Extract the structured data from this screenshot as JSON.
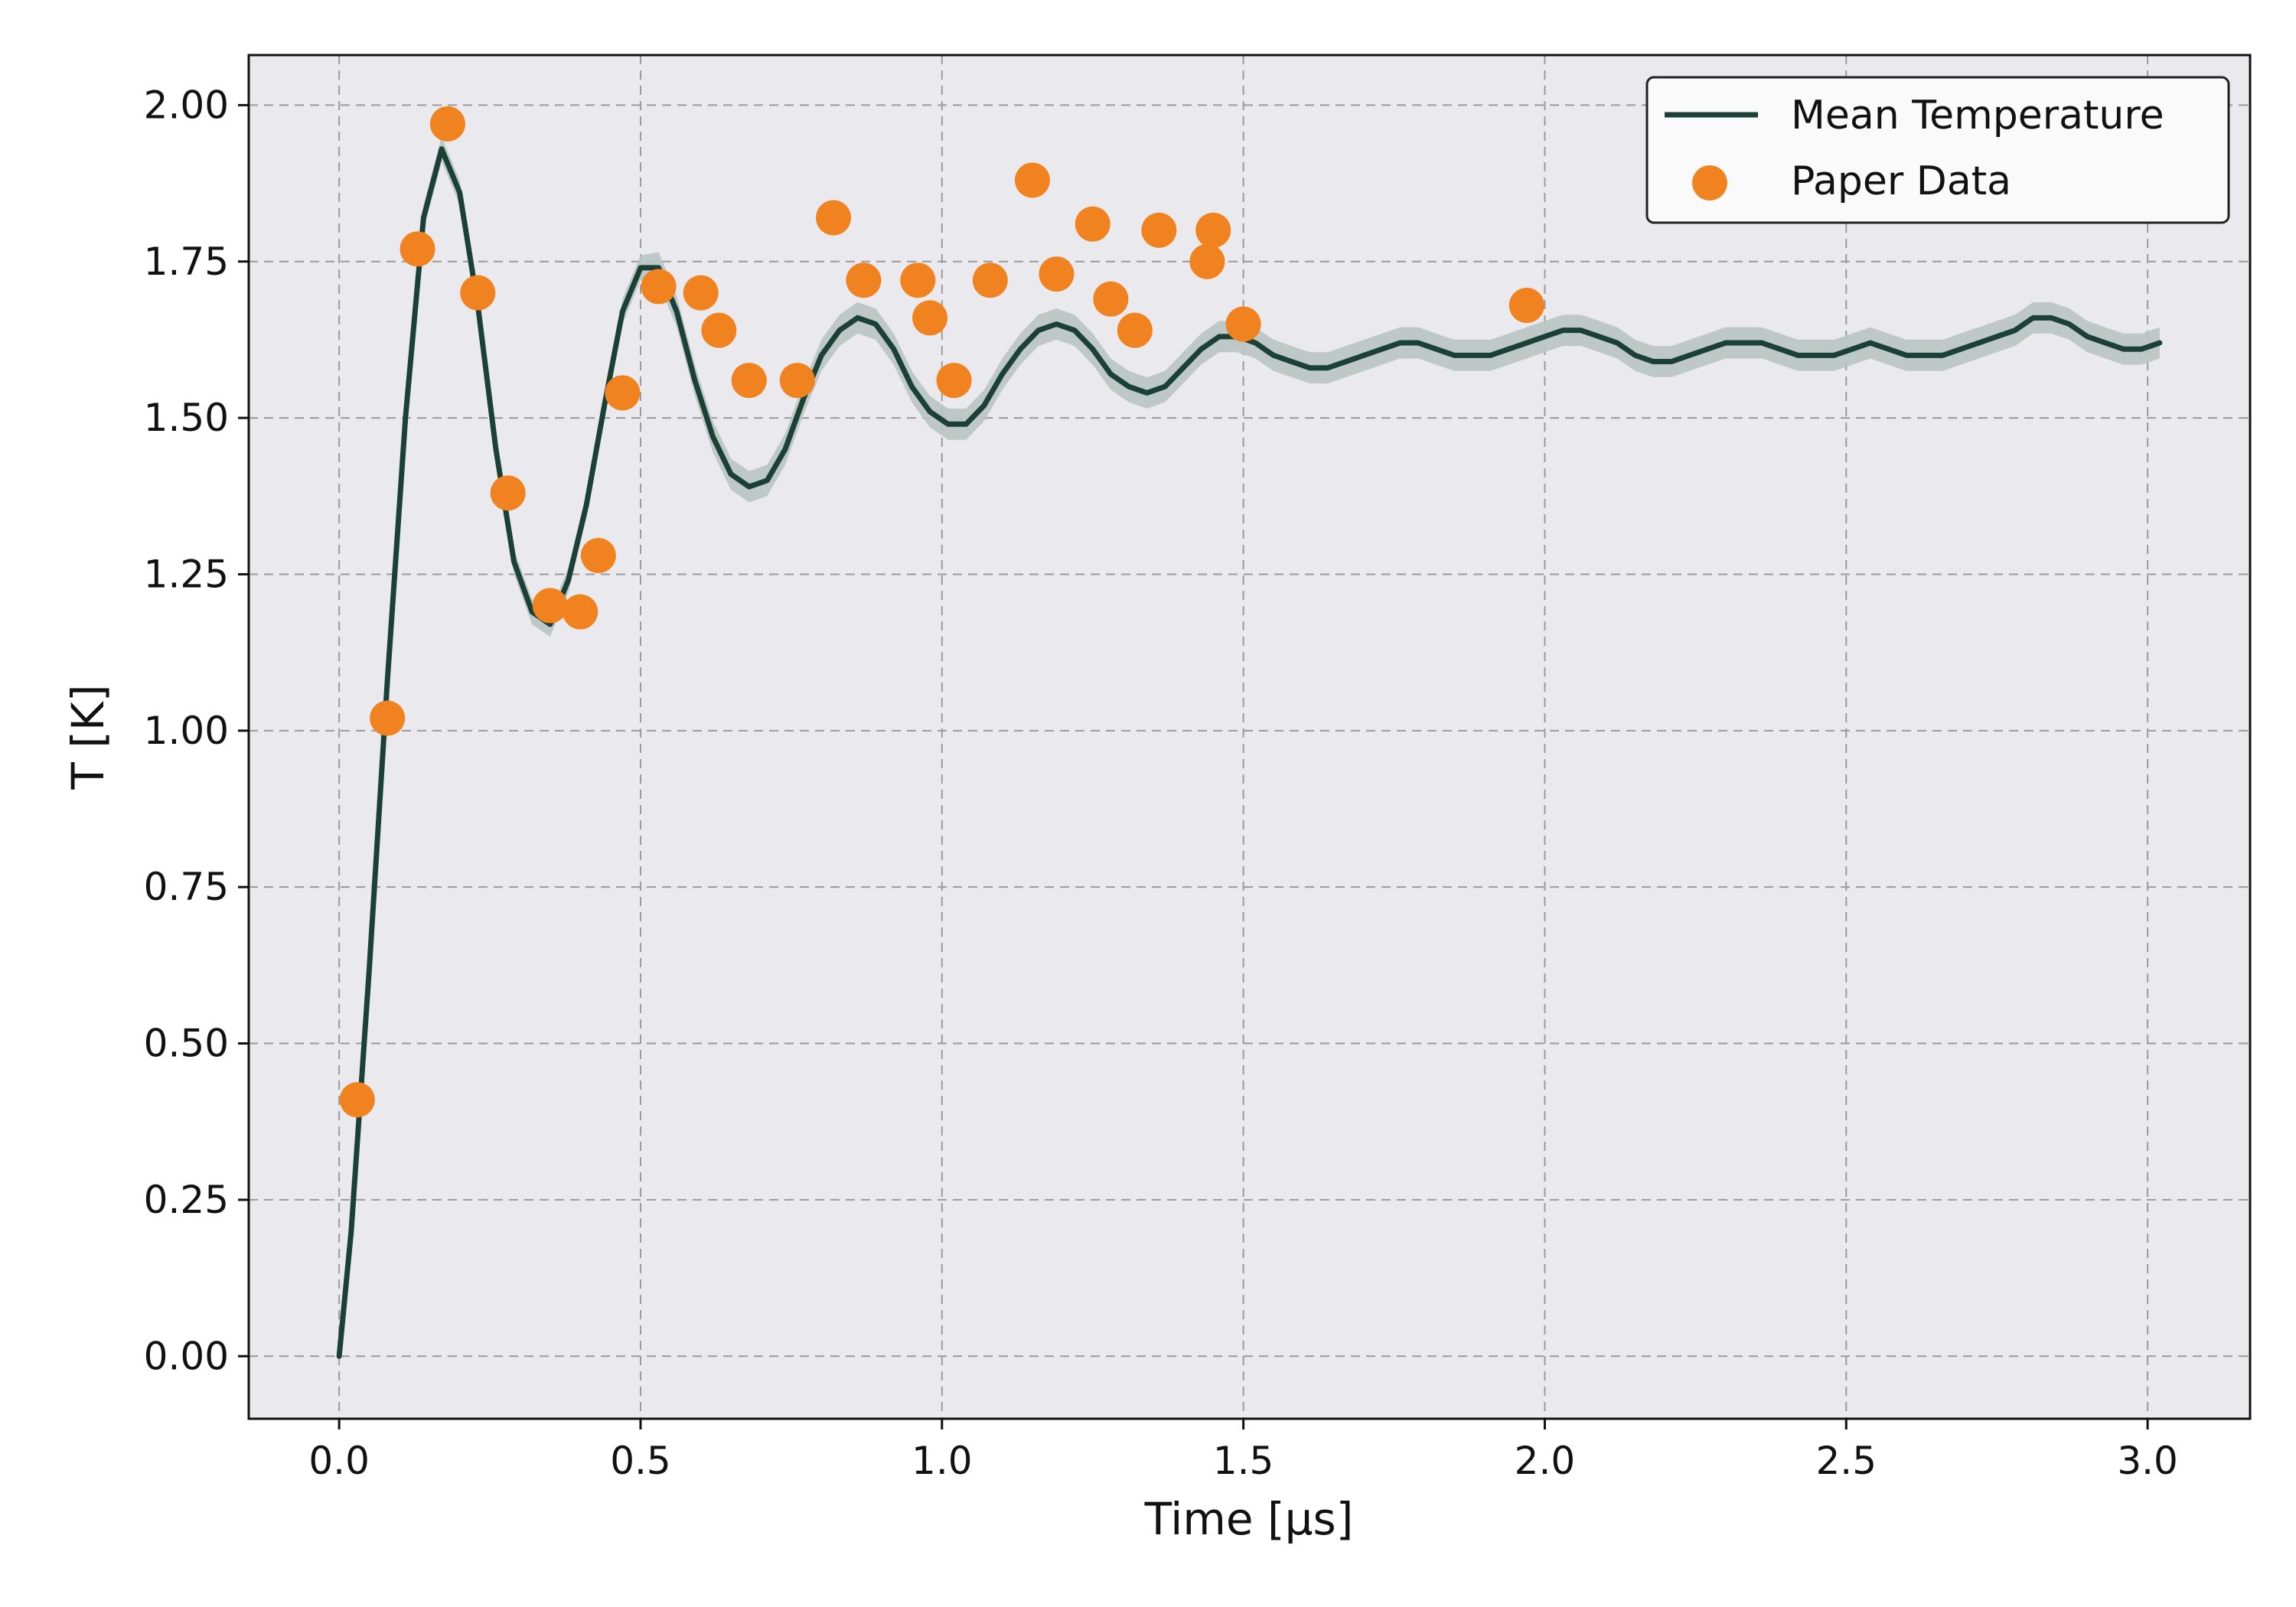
{
  "chart_data": {
    "type": "line",
    "xlabel": "Time [μs]",
    "ylabel": "T [K]",
    "xlim": [
      -0.15,
      3.17
    ],
    "ylim": [
      -0.1,
      2.08
    ],
    "x_ticks": [
      0.0,
      0.5,
      1.0,
      1.5,
      2.0,
      2.5,
      3.0
    ],
    "x_tick_labels": [
      "0.0",
      "0.5",
      "1.0",
      "1.5",
      "2.0",
      "2.5",
      "3.0"
    ],
    "y_ticks": [
      0.0,
      0.25,
      0.5,
      0.75,
      1.0,
      1.25,
      1.5,
      1.75,
      2.0
    ],
    "y_tick_labels": [
      "0.00",
      "0.25",
      "0.50",
      "0.75",
      "1.00",
      "1.25",
      "1.50",
      "1.75",
      "2.00"
    ],
    "grid": true,
    "legend_position": "top-right",
    "background_color": "#eae9ee",
    "series": [
      {
        "name": "Mean Temperature",
        "kind": "line",
        "color": "#1b4137",
        "band_color": "#b9c4c2",
        "x": [
          0.0,
          0.02,
          0.05,
          0.08,
          0.11,
          0.14,
          0.17,
          0.2,
          0.23,
          0.26,
          0.29,
          0.32,
          0.35,
          0.38,
          0.41,
          0.44,
          0.47,
          0.5,
          0.53,
          0.56,
          0.59,
          0.62,
          0.65,
          0.68,
          0.71,
          0.74,
          0.77,
          0.8,
          0.83,
          0.86,
          0.89,
          0.92,
          0.95,
          0.98,
          1.01,
          1.04,
          1.07,
          1.1,
          1.13,
          1.16,
          1.19,
          1.22,
          1.25,
          1.28,
          1.31,
          1.34,
          1.37,
          1.4,
          1.43,
          1.46,
          1.49,
          1.52,
          1.55,
          1.58,
          1.61,
          1.64,
          1.67,
          1.7,
          1.73,
          1.76,
          1.79,
          1.82,
          1.85,
          1.88,
          1.91,
          1.94,
          1.97,
          2.0,
          2.03,
          2.06,
          2.09,
          2.12,
          2.15,
          2.18,
          2.21,
          2.24,
          2.27,
          2.3,
          2.33,
          2.36,
          2.39,
          2.42,
          2.45,
          2.48,
          2.51,
          2.54,
          2.57,
          2.6,
          2.63,
          2.66,
          2.69,
          2.72,
          2.75,
          2.78,
          2.81,
          2.84,
          2.87,
          2.9,
          2.93,
          2.96,
          2.99,
          3.02
        ],
        "y": [
          0.0,
          0.2,
          0.62,
          1.08,
          1.5,
          1.82,
          1.93,
          1.86,
          1.68,
          1.45,
          1.27,
          1.19,
          1.17,
          1.24,
          1.36,
          1.52,
          1.67,
          1.74,
          1.74,
          1.67,
          1.56,
          1.47,
          1.41,
          1.39,
          1.4,
          1.45,
          1.53,
          1.6,
          1.64,
          1.66,
          1.65,
          1.61,
          1.55,
          1.51,
          1.49,
          1.49,
          1.52,
          1.57,
          1.61,
          1.64,
          1.65,
          1.64,
          1.61,
          1.57,
          1.55,
          1.54,
          1.55,
          1.58,
          1.61,
          1.63,
          1.63,
          1.62,
          1.6,
          1.59,
          1.58,
          1.58,
          1.59,
          1.6,
          1.61,
          1.62,
          1.62,
          1.61,
          1.6,
          1.6,
          1.6,
          1.61,
          1.62,
          1.63,
          1.64,
          1.64,
          1.63,
          1.62,
          1.6,
          1.59,
          1.59,
          1.6,
          1.61,
          1.62,
          1.62,
          1.62,
          1.61,
          1.6,
          1.6,
          1.6,
          1.61,
          1.62,
          1.61,
          1.6,
          1.6,
          1.6,
          1.61,
          1.62,
          1.63,
          1.64,
          1.66,
          1.66,
          1.65,
          1.63,
          1.62,
          1.61,
          1.61,
          1.62
        ],
        "band_halfwidth": [
          0.0,
          0.01,
          0.02,
          0.02,
          0.02,
          0.02,
          0.02,
          0.02,
          0.02,
          0.02,
          0.02,
          0.02,
          0.02,
          0.02,
          0.02,
          0.02,
          0.02,
          0.02,
          0.025,
          0.025,
          0.025,
          0.025,
          0.025,
          0.025,
          0.025,
          0.025,
          0.025,
          0.025,
          0.025,
          0.025,
          0.025,
          0.025,
          0.025,
          0.025,
          0.025,
          0.025,
          0.025,
          0.025,
          0.025,
          0.025,
          0.025,
          0.025,
          0.025,
          0.025,
          0.025,
          0.025,
          0.025,
          0.025,
          0.025,
          0.025,
          0.025,
          0.025,
          0.025,
          0.025,
          0.025,
          0.025,
          0.025,
          0.025,
          0.025,
          0.025,
          0.025,
          0.025,
          0.025,
          0.025,
          0.025,
          0.025,
          0.025,
          0.025,
          0.025,
          0.025,
          0.025,
          0.025,
          0.025,
          0.025,
          0.025,
          0.025,
          0.025,
          0.025,
          0.025,
          0.025,
          0.025,
          0.025,
          0.025,
          0.025,
          0.025,
          0.025,
          0.025,
          0.025,
          0.025,
          0.025,
          0.025,
          0.025,
          0.025,
          0.025,
          0.025,
          0.025,
          0.025,
          0.025,
          0.025,
          0.025,
          0.025,
          0.025
        ]
      },
      {
        "name": "Paper Data",
        "kind": "scatter",
        "color": "#f0831f",
        "x": [
          0.03,
          0.08,
          0.13,
          0.18,
          0.23,
          0.28,
          0.35,
          0.4,
          0.43,
          0.47,
          0.53,
          0.6,
          0.63,
          0.68,
          0.76,
          0.82,
          0.87,
          0.96,
          0.98,
          1.02,
          1.08,
          1.15,
          1.19,
          1.25,
          1.28,
          1.32,
          1.36,
          1.44,
          1.45,
          1.5,
          1.97
        ],
        "y": [
          0.41,
          1.02,
          1.77,
          1.97,
          1.7,
          1.38,
          1.2,
          1.19,
          1.28,
          1.54,
          1.71,
          1.7,
          1.64,
          1.56,
          1.56,
          1.82,
          1.72,
          1.72,
          1.66,
          1.56,
          1.72,
          1.88,
          1.73,
          1.81,
          1.69,
          1.64,
          1.8,
          1.75,
          1.8,
          1.65,
          1.68
        ]
      }
    ]
  }
}
